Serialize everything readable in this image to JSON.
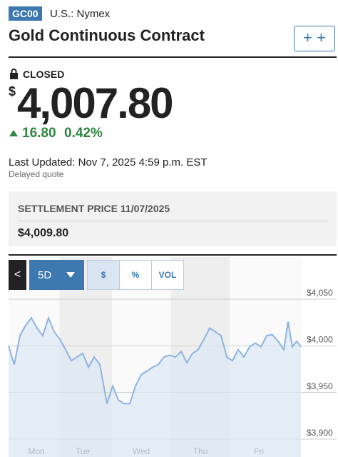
{
  "header": {
    "symbol": "GC00",
    "exchange": "U.S.: Nymex",
    "title": "Gold Continuous Contract"
  },
  "quote": {
    "status": "CLOSED",
    "currency": "$",
    "price": "4,007.80",
    "change": "16.80",
    "change_percent": "0.42%",
    "last_updated": "Last Updated: Nov 7, 2025 4:59 p.m. EST",
    "delay_note": "Delayed quote"
  },
  "settlement": {
    "label": "SETTLEMENT PRICE 11/07/2025",
    "value": "$4,009.80"
  },
  "controls": {
    "range": "5D",
    "modes": [
      "$",
      "%",
      "VOL"
    ]
  },
  "chart": {
    "type": "line",
    "color": "#8db4e2",
    "x": [
      0,
      8,
      16,
      24,
      32,
      40,
      48,
      56,
      64,
      72,
      80,
      88,
      96,
      104,
      112,
      120,
      128,
      138,
      146,
      154,
      162,
      170,
      178,
      186,
      194,
      202,
      210,
      218,
      226,
      234,
      242,
      250,
      258,
      266,
      274,
      282,
      290,
      298,
      306,
      314,
      322,
      330,
      338,
      346,
      354,
      362,
      370,
      378,
      386,
      392,
      398,
      404,
      410
    ],
    "values": [
      4000,
      3980,
      4011,
      4022,
      4030,
      4019,
      4011,
      4030,
      4015,
      4007,
      3996,
      3984,
      3988,
      3992,
      3977,
      3988,
      3980,
      3938,
      3957,
      3942,
      3938,
      3938,
      3957,
      3969,
      3973,
      3977,
      3980,
      3988,
      3990,
      3988,
      3994,
      3982,
      3992,
      3996,
      4007,
      4019,
      4015,
      4011,
      3988,
      3984,
      3996,
      3988,
      3999,
      4003,
      3999,
      4011,
      4012,
      4005,
      3996,
      4026,
      3999,
      4005,
      3999
    ],
    "xlim": [
      0,
      410
    ],
    "xticks": [
      {
        "value": 39,
        "label": "Mon"
      },
      {
        "value": 104,
        "label": "Tue"
      },
      {
        "value": 186,
        "label": "Wed"
      },
      {
        "value": 269,
        "label": "Thu"
      },
      {
        "value": 351,
        "label": "Fri"
      }
    ],
    "ylim": [
      3900,
      4050
    ],
    "yticks": [
      {
        "value": 3900,
        "label": "$3,900"
      },
      {
        "value": 3950,
        "label": "$3,950"
      },
      {
        "value": 4000,
        "label": "$4,000"
      },
      {
        "value": 4050,
        "label": "$4,050"
      }
    ],
    "grid": true
  }
}
